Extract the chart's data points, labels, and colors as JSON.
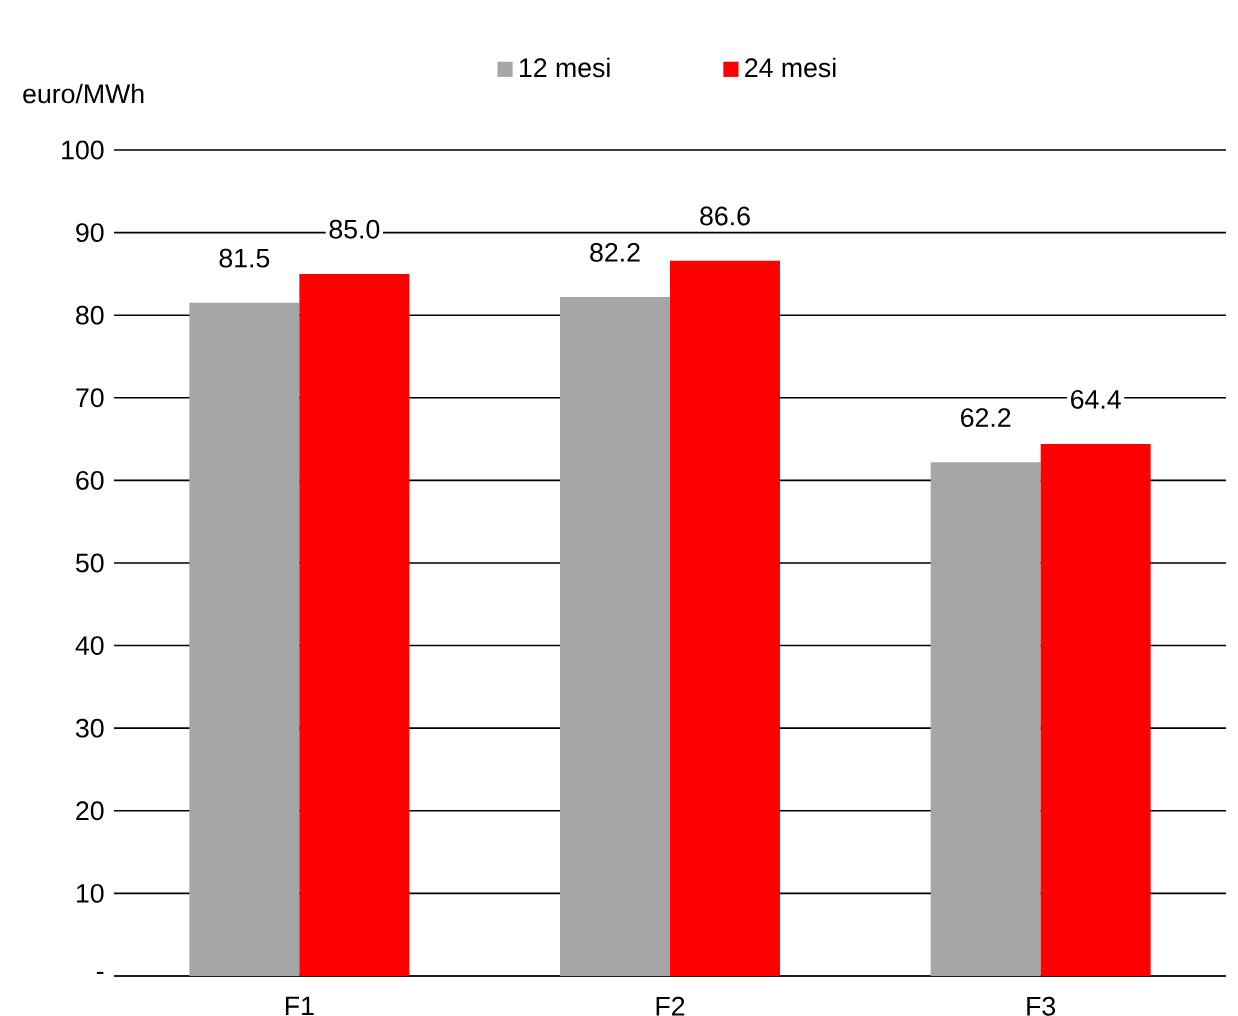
{
  "chart_data": {
    "type": "bar",
    "ylabel": "euro/MWh",
    "categories": [
      "F1",
      "F2",
      "F3"
    ],
    "series": [
      {
        "name": "12 mesi",
        "color": "#a6a6a6",
        "values": [
          81.5,
          82.2,
          62.2
        ],
        "value_labels": [
          "81.5",
          "82.2",
          "62.2"
        ]
      },
      {
        "name": "24 mesi",
        "color": "#ff0000",
        "values": [
          85.0,
          86.6,
          64.4
        ],
        "value_labels": [
          "85.0",
          "86.6",
          "64.4"
        ]
      }
    ],
    "ylim": [
      0,
      100
    ],
    "yticks": [
      {
        "value": 0,
        "label": "-"
      },
      10,
      20,
      30,
      40,
      50,
      60,
      70,
      80,
      90,
      100
    ],
    "grid": "y",
    "legend": "top"
  }
}
